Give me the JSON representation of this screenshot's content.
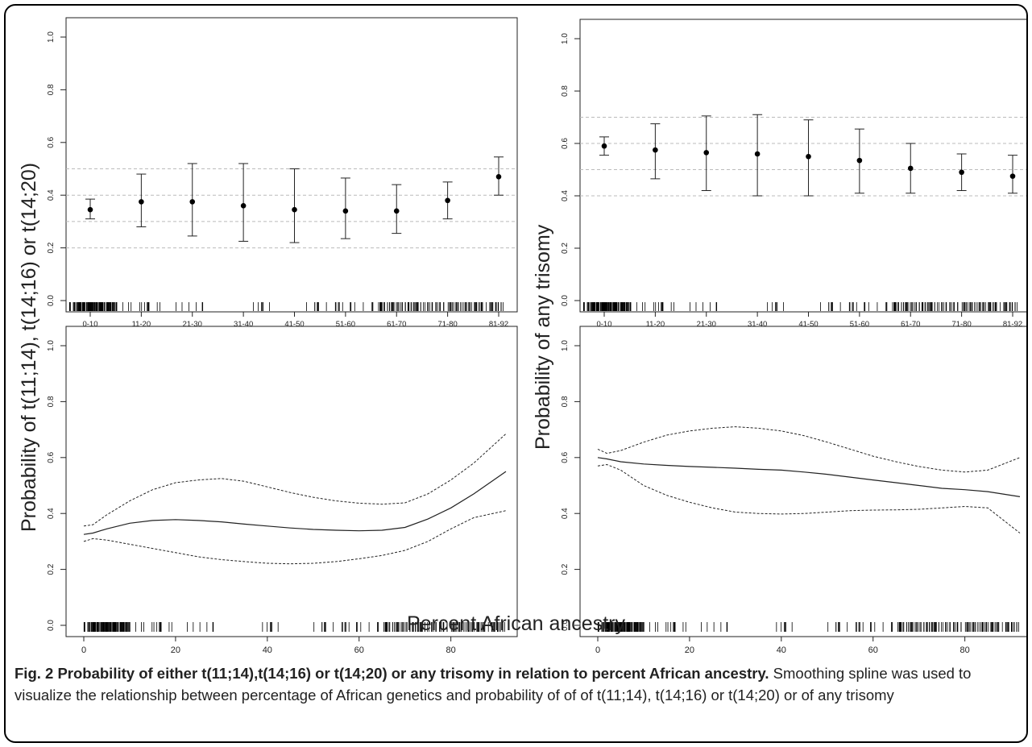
{
  "figure": {
    "ylabel_left": "Probability of t(11;14), t(14;16) or t(14;20)",
    "ylabel_right": "Probability of any trisomy",
    "xlabel_bottom": "Percent African ancestry"
  },
  "caption": {
    "lead": "Fig. 2 Probability of either t(11;14),t(14;16) or t(14;20) or any trisomy in relation to percent African ancestry.",
    "body": " Smoothing spline was used to visualize the relationship between percentage of African genetics and probability of of of t(11;14), t(14;16) or t(14;20) or of any trisomy"
  },
  "colors": {
    "ink": "#222222",
    "grid": "#bbbbbb"
  },
  "chart_data": [
    {
      "id": "top-left",
      "type": "scatter",
      "ylim": [
        0,
        1
      ],
      "yticks": [
        "0.0",
        "0.2",
        "0.4",
        "0.6",
        "0.8",
        "1.0"
      ],
      "ytick_values": [
        0,
        0.2,
        0.4,
        0.6,
        0.8,
        1
      ],
      "categories": [
        "0-10",
        "11-20",
        "21-30",
        "31-40",
        "41-50",
        "51-60",
        "61-70",
        "71-80",
        "81-92"
      ],
      "points": [
        {
          "est": 0.345,
          "lo": 0.31,
          "hi": 0.385
        },
        {
          "est": 0.375,
          "lo": 0.28,
          "hi": 0.48
        },
        {
          "est": 0.375,
          "lo": 0.245,
          "hi": 0.52
        },
        {
          "est": 0.36,
          "lo": 0.225,
          "hi": 0.52
        },
        {
          "est": 0.345,
          "lo": 0.22,
          "hi": 0.5
        },
        {
          "est": 0.34,
          "lo": 0.235,
          "hi": 0.465
        },
        {
          "est": 0.34,
          "lo": 0.255,
          "hi": 0.44
        },
        {
          "est": 0.38,
          "lo": 0.31,
          "hi": 0.45
        },
        {
          "est": 0.47,
          "lo": 0.4,
          "hi": 0.545
        }
      ],
      "hlines": [
        0.2,
        0.3,
        0.4,
        0.5
      ],
      "rug": true
    },
    {
      "id": "top-right",
      "type": "scatter",
      "ylim": [
        0,
        1
      ],
      "yticks": [
        "0.0",
        "0.2",
        "0.4",
        "0.6",
        "0.8",
        "1.0"
      ],
      "ytick_values": [
        0,
        0.2,
        0.4,
        0.6,
        0.8,
        1
      ],
      "categories": [
        "0-10",
        "11-20",
        "21-30",
        "31-40",
        "41-50",
        "51-60",
        "61-70",
        "71-80",
        "81-92"
      ],
      "points": [
        {
          "est": 0.59,
          "lo": 0.555,
          "hi": 0.625
        },
        {
          "est": 0.575,
          "lo": 0.465,
          "hi": 0.675
        },
        {
          "est": 0.565,
          "lo": 0.42,
          "hi": 0.705
        },
        {
          "est": 0.56,
          "lo": 0.4,
          "hi": 0.71
        },
        {
          "est": 0.55,
          "lo": 0.4,
          "hi": 0.69
        },
        {
          "est": 0.535,
          "lo": 0.41,
          "hi": 0.655
        },
        {
          "est": 0.505,
          "lo": 0.41,
          "hi": 0.6
        },
        {
          "est": 0.49,
          "lo": 0.42,
          "hi": 0.56
        },
        {
          "est": 0.475,
          "lo": 0.41,
          "hi": 0.555
        }
      ],
      "hlines": [
        0.4,
        0.5,
        0.6,
        0.7
      ],
      "rug": true
    },
    {
      "id": "bottom-left",
      "type": "line",
      "ylim": [
        0,
        1
      ],
      "xlim": [
        -5,
        95
      ],
      "yticks": [
        "0.0",
        "0.2",
        "0.4",
        "0.6",
        "0.8",
        "1.0"
      ],
      "ytick_values": [
        0,
        0.2,
        0.4,
        0.6,
        0.8,
        1
      ],
      "xticks": [
        "0",
        "20",
        "40",
        "60",
        "80"
      ],
      "xtick_values": [
        0,
        20,
        40,
        60,
        80
      ],
      "x": [
        0,
        2,
        5,
        10,
        15,
        20,
        25,
        30,
        35,
        40,
        45,
        50,
        55,
        60,
        65,
        70,
        75,
        80,
        85,
        92
      ],
      "series": [
        {
          "values": [
            0.325,
            0.33,
            0.345,
            0.365,
            0.375,
            0.378,
            0.375,
            0.37,
            0.362,
            0.355,
            0.348,
            0.343,
            0.34,
            0.338,
            0.34,
            0.35,
            0.38,
            0.42,
            0.47,
            0.55
          ]
        },
        {
          "values": [
            0.355,
            0.36,
            0.395,
            0.445,
            0.485,
            0.51,
            0.52,
            0.525,
            0.515,
            0.495,
            0.475,
            0.458,
            0.445,
            0.437,
            0.433,
            0.438,
            0.47,
            0.52,
            0.58,
            0.685
          ]
        },
        {
          "values": [
            0.3,
            0.31,
            0.305,
            0.29,
            0.275,
            0.26,
            0.245,
            0.235,
            0.228,
            0.222,
            0.22,
            0.222,
            0.228,
            0.238,
            0.25,
            0.268,
            0.3,
            0.345,
            0.385,
            0.41
          ]
        }
      ],
      "rug": true
    },
    {
      "id": "bottom-right",
      "type": "line",
      "ylim": [
        0,
        1
      ],
      "xlim": [
        -5,
        95
      ],
      "yticks": [
        "0.0",
        "0.2",
        "0.4",
        "0.6",
        "0.8",
        "1.0"
      ],
      "ytick_values": [
        0,
        0.2,
        0.4,
        0.6,
        0.8,
        1
      ],
      "xticks": [
        "0",
        "20",
        "40",
        "60",
        "80"
      ],
      "xtick_values": [
        0,
        20,
        40,
        60,
        80
      ],
      "x": [
        0,
        2,
        5,
        10,
        15,
        20,
        25,
        30,
        35,
        40,
        45,
        50,
        55,
        60,
        65,
        70,
        75,
        80,
        85,
        92
      ],
      "series": [
        {
          "values": [
            0.6,
            0.595,
            0.585,
            0.577,
            0.572,
            0.568,
            0.565,
            0.562,
            0.558,
            0.555,
            0.548,
            0.54,
            0.53,
            0.52,
            0.51,
            0.5,
            0.49,
            0.485,
            0.478,
            0.46
          ]
        },
        {
          "values": [
            0.63,
            0.615,
            0.625,
            0.655,
            0.68,
            0.695,
            0.705,
            0.71,
            0.705,
            0.695,
            0.678,
            0.655,
            0.63,
            0.605,
            0.585,
            0.568,
            0.555,
            0.548,
            0.555,
            0.6
          ]
        },
        {
          "values": [
            0.57,
            0.575,
            0.555,
            0.5,
            0.465,
            0.44,
            0.42,
            0.405,
            0.4,
            0.398,
            0.4,
            0.405,
            0.41,
            0.412,
            0.413,
            0.415,
            0.42,
            0.425,
            0.42,
            0.33
          ]
        }
      ],
      "rug": true
    }
  ]
}
